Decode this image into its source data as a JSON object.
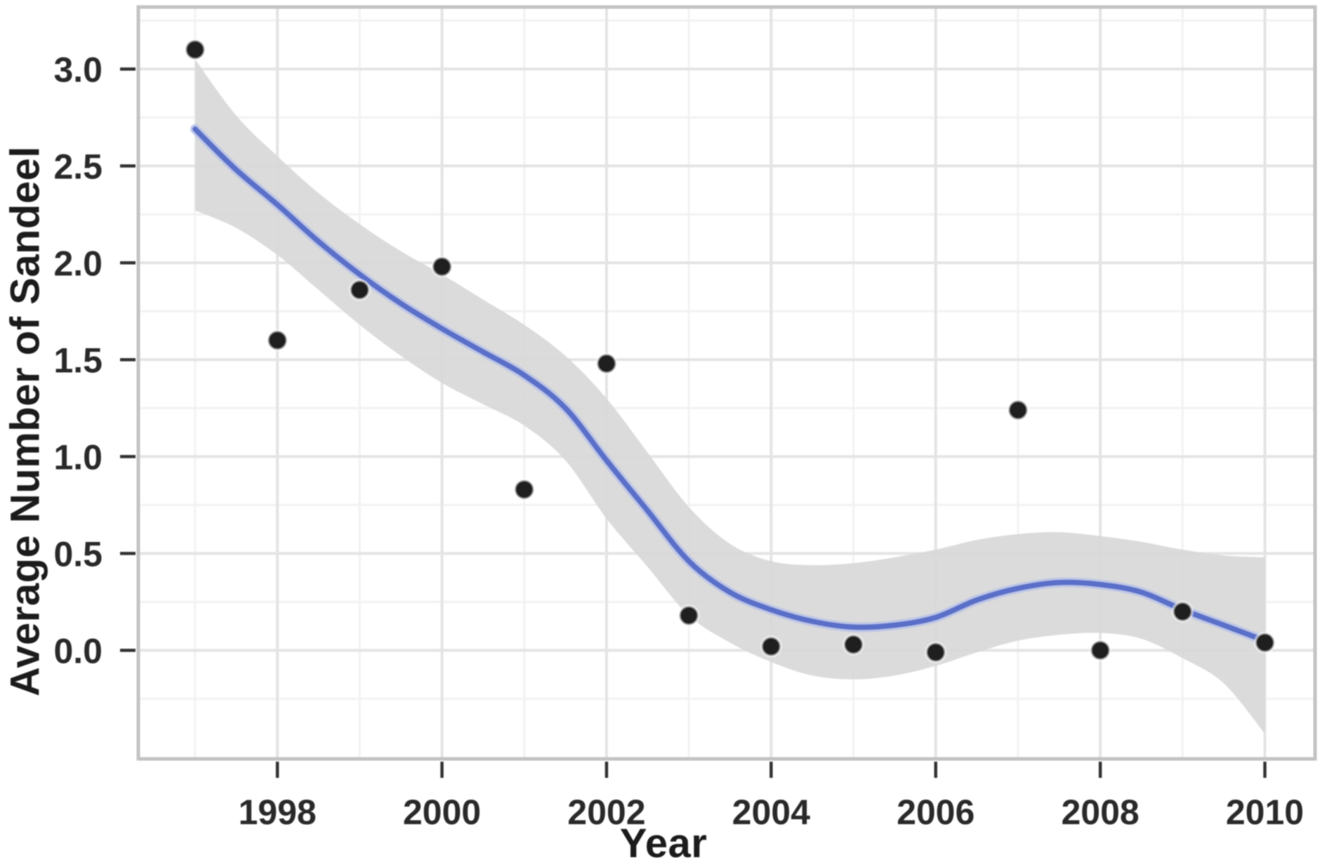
{
  "chart_data": {
    "type": "scatter",
    "title": "",
    "xlabel": "Year",
    "ylabel": "Average Number of Sandeel",
    "legend": "none",
    "grid": "major+minor",
    "x_domain": [
      1996.31,
      2010.61
    ],
    "y_domain": [
      -0.56,
      3.32
    ],
    "x_ticks": [
      1998,
      2000,
      2002,
      2004,
      2006,
      2008,
      2010
    ],
    "x_tick_labels": [
      "1998",
      "2000",
      "2002",
      "2004",
      "2006",
      "2008",
      "2010"
    ],
    "x_minor_ticks": [
      1997,
      1999,
      2001,
      2003,
      2005,
      2007,
      2009
    ],
    "y_ticks": [
      0.0,
      0.5,
      1.0,
      1.5,
      2.0,
      2.5,
      3.0
    ],
    "y_tick_labels": [
      "0.0",
      "0.5",
      "1.0",
      "1.5",
      "2.0",
      "2.5",
      "3.0"
    ],
    "y_minor_ticks": [
      -0.25,
      0.25,
      0.75,
      1.25,
      1.75,
      2.25,
      2.75,
      3.25
    ],
    "points": {
      "x": [
        1997,
        1998,
        1999,
        2000,
        2001,
        2002,
        2003,
        2004,
        2005,
        2006,
        2007,
        2008,
        2009,
        2010
      ],
      "y": [
        3.1,
        1.6,
        1.86,
        1.98,
        0.83,
        1.48,
        0.18,
        0.02,
        0.03,
        -0.01,
        1.24,
        0.0,
        0.2,
        0.04
      ]
    },
    "smooth_line": {
      "x": [
        1997,
        1997.5,
        1998,
        1998.5,
        1999,
        1999.5,
        2000,
        2000.5,
        2001,
        2001.5,
        2002,
        2002.5,
        2003,
        2003.5,
        2004,
        2004.5,
        2005,
        2005.5,
        2006,
        2006.5,
        2007,
        2007.5,
        2008,
        2008.5,
        2009,
        2009.5,
        2010
      ],
      "y": [
        2.69,
        2.48,
        2.3,
        2.11,
        1.94,
        1.79,
        1.66,
        1.54,
        1.42,
        1.25,
        0.98,
        0.72,
        0.46,
        0.3,
        0.21,
        0.15,
        0.12,
        0.13,
        0.17,
        0.26,
        0.32,
        0.35,
        0.34,
        0.3,
        0.21,
        0.13,
        0.05
      ]
    },
    "ribbon": {
      "x": [
        1997,
        1997.5,
        1998,
        1998.5,
        1999,
        1999.5,
        2000,
        2000.5,
        2001,
        2001.5,
        2002,
        2002.5,
        2003,
        2003.5,
        2004,
        2004.5,
        2005,
        2005.5,
        2006,
        2006.5,
        2007,
        2007.5,
        2008,
        2008.5,
        2009,
        2009.5,
        2010
      ],
      "upper": [
        3.05,
        2.76,
        2.55,
        2.36,
        2.2,
        2.06,
        1.94,
        1.81,
        1.68,
        1.52,
        1.3,
        1.02,
        0.74,
        0.55,
        0.46,
        0.44,
        0.45,
        0.48,
        0.52,
        0.57,
        0.6,
        0.61,
        0.59,
        0.56,
        0.52,
        0.49,
        0.48
      ],
      "lower": [
        2.27,
        2.18,
        2.04,
        1.86,
        1.68,
        1.52,
        1.38,
        1.27,
        1.16,
        0.98,
        0.68,
        0.43,
        0.18,
        0.04,
        -0.06,
        -0.13,
        -0.15,
        -0.13,
        -0.08,
        -0.01,
        0.05,
        0.08,
        0.09,
        0.06,
        -0.04,
        -0.17,
        -0.43
      ]
    },
    "colors": {
      "point": "#1f1f1f",
      "point_halo": "#ffffff",
      "smooth_line": "#5a6fc8",
      "smooth_line_halo": "#b7c1e8",
      "ribbon": "#d8d8d8",
      "panel_border": "#c3c3c3",
      "grid_major": "#e4e4e4",
      "grid_minor": "#f2f2f2",
      "tick": "#333333",
      "text": "#2a2a2a",
      "background": "#ffffff"
    }
  }
}
